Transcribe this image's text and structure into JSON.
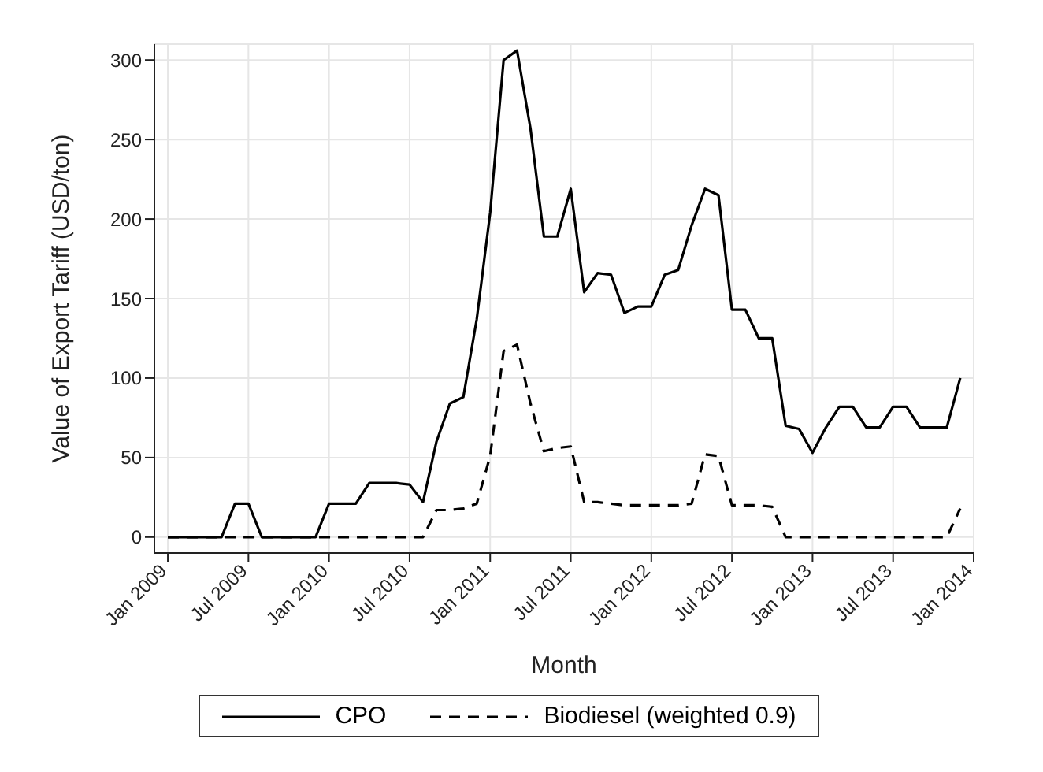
{
  "chart_data": {
    "type": "line",
    "xlabel": "Month",
    "ylabel": "Value of Export Tariff (USD/ton)",
    "x": [
      "2009-01",
      "2009-02",
      "2009-03",
      "2009-04",
      "2009-05",
      "2009-06",
      "2009-07",
      "2009-08",
      "2009-09",
      "2009-10",
      "2009-11",
      "2009-12",
      "2010-01",
      "2010-02",
      "2010-03",
      "2010-04",
      "2010-05",
      "2010-06",
      "2010-07",
      "2010-08",
      "2010-09",
      "2010-10",
      "2010-11",
      "2010-12",
      "2011-01",
      "2011-02",
      "2011-03",
      "2011-04",
      "2011-05",
      "2011-06",
      "2011-07",
      "2011-08",
      "2011-09",
      "2011-10",
      "2011-11",
      "2011-12",
      "2012-01",
      "2012-02",
      "2012-03",
      "2012-04",
      "2012-05",
      "2012-06",
      "2012-07",
      "2012-08",
      "2012-09",
      "2012-10",
      "2012-11",
      "2012-12",
      "2013-01",
      "2013-02",
      "2013-03",
      "2013-04",
      "2013-05",
      "2013-06",
      "2013-07",
      "2013-08",
      "2013-09",
      "2013-10",
      "2013-11",
      "2013-12"
    ],
    "series": [
      {
        "name": "CPO",
        "color": "#000000",
        "line_style": "solid",
        "values": [
          0,
          0,
          0,
          0,
          0,
          21,
          21,
          0,
          0,
          0,
          0,
          0,
          21,
          21,
          21,
          34,
          34,
          34,
          33,
          22,
          60,
          84,
          88,
          137,
          204,
          300,
          306,
          257,
          189,
          189,
          219,
          154,
          166,
          165,
          141,
          145,
          145,
          165,
          168,
          196,
          219,
          215,
          143,
          143,
          125,
          125,
          70,
          68,
          53,
          69,
          82,
          82,
          69,
          69,
          82,
          82,
          69,
          69,
          69,
          100
        ]
      },
      {
        "name": "Biodiesel (weighted 0.9)",
        "color": "#000000",
        "line_style": "dashed",
        "values": [
          0,
          0,
          0,
          0,
          0,
          0,
          0,
          0,
          0,
          0,
          0,
          0,
          0,
          0,
          0,
          0,
          0,
          0,
          0,
          0,
          17,
          17,
          18,
          21,
          51,
          117,
          121,
          84,
          54,
          56,
          57,
          22,
          22,
          21,
          20,
          20,
          20,
          20,
          20,
          21,
          52,
          51,
          20,
          20,
          20,
          19,
          0,
          0,
          0,
          0,
          0,
          0,
          0,
          0,
          0,
          0,
          0,
          0,
          0,
          18
        ]
      }
    ],
    "xlim": [
      "2008-12",
      "2014-01"
    ],
    "xticks": [
      {
        "value": "2009-01",
        "label": "Jan 2009"
      },
      {
        "value": "2009-07",
        "label": "Jul 2009"
      },
      {
        "value": "2010-01",
        "label": "Jan 2010"
      },
      {
        "value": "2010-07",
        "label": "Jul 2010"
      },
      {
        "value": "2011-01",
        "label": "Jan 2011"
      },
      {
        "value": "2011-07",
        "label": "Jul 2011"
      },
      {
        "value": "2012-01",
        "label": "Jan 2012"
      },
      {
        "value": "2012-07",
        "label": "Jul 2012"
      },
      {
        "value": "2013-01",
        "label": "Jan 2013"
      },
      {
        "value": "2013-07",
        "label": "Jul 2013"
      },
      {
        "value": "2014-01",
        "label": "Jan 2014"
      }
    ],
    "ylim": [
      -10,
      310
    ],
    "yticks": [
      0,
      50,
      100,
      150,
      200,
      250,
      300
    ],
    "grid": true,
    "legend": "bottom",
    "marker": "none"
  }
}
